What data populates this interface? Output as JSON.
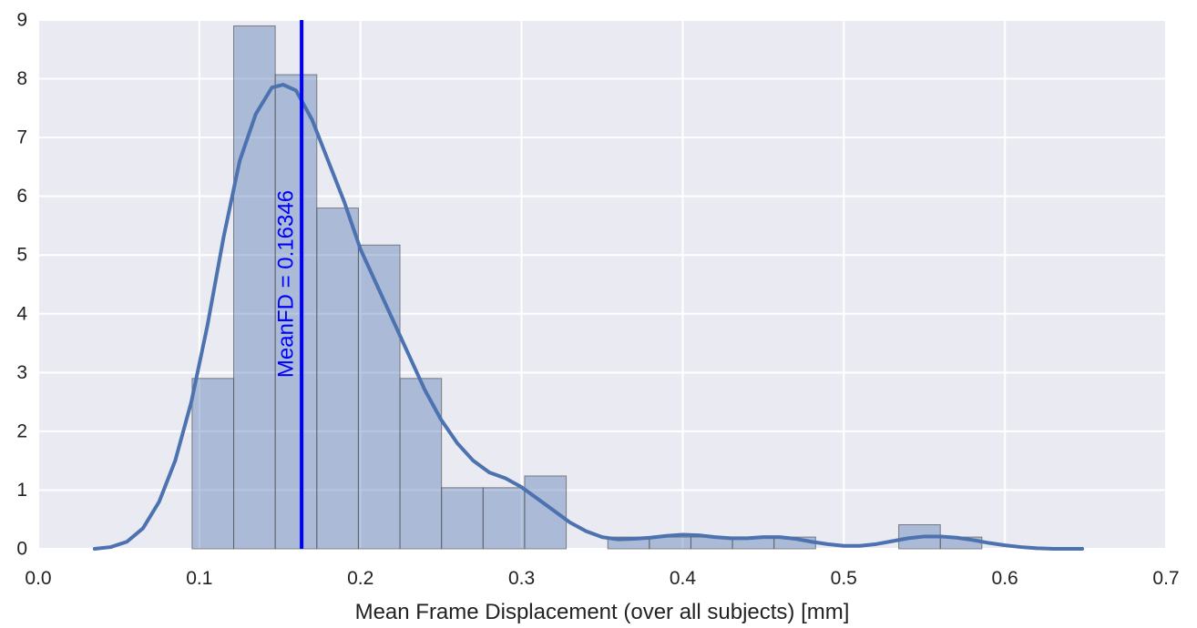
{
  "chart_data": {
    "type": "bar",
    "xlabel": "Mean Frame Displacement (over all subjects) [mm]",
    "ylabel": "",
    "xlim": [
      0.0,
      0.7
    ],
    "ylim": [
      0,
      9
    ],
    "xticks": [
      "0.0",
      "0.1",
      "0.2",
      "0.3",
      "0.4",
      "0.5",
      "0.6",
      "0.7"
    ],
    "yticks": [
      "0",
      "1",
      "2",
      "3",
      "4",
      "5",
      "6",
      "7",
      "8",
      "9"
    ],
    "grid": true,
    "colors": {
      "background": "#eaeaf2",
      "grid": "#ffffff",
      "bar_fill": "#4c72b0",
      "bar_edge": "#555555",
      "kde": "#4c72b0",
      "mean_line": "#0000ff"
    },
    "bins": [
      {
        "x0": 0.0955,
        "x1": 0.1213,
        "value": 2.9
      },
      {
        "x0": 0.1213,
        "x1": 0.1471,
        "value": 8.9
      },
      {
        "x0": 0.1471,
        "x1": 0.1729,
        "value": 8.07
      },
      {
        "x0": 0.1729,
        "x1": 0.1987,
        "value": 5.8
      },
      {
        "x0": 0.1987,
        "x1": 0.2245,
        "value": 5.17
      },
      {
        "x0": 0.2245,
        "x1": 0.2503,
        "value": 2.9
      },
      {
        "x0": 0.2503,
        "x1": 0.2761,
        "value": 1.04
      },
      {
        "x0": 0.2761,
        "x1": 0.3019,
        "value": 1.04
      },
      {
        "x0": 0.3019,
        "x1": 0.3277,
        "value": 1.24
      },
      {
        "x0": 0.3277,
        "x1": 0.3535,
        "value": 0
      },
      {
        "x0": 0.3535,
        "x1": 0.3793,
        "value": 0.2
      },
      {
        "x0": 0.3793,
        "x1": 0.4051,
        "value": 0.2
      },
      {
        "x0": 0.4051,
        "x1": 0.4309,
        "value": 0.2
      },
      {
        "x0": 0.4309,
        "x1": 0.4567,
        "value": 0.2
      },
      {
        "x0": 0.4567,
        "x1": 0.4825,
        "value": 0.2
      },
      {
        "x0": 0.4825,
        "x1": 0.5083,
        "value": 0
      },
      {
        "x0": 0.5083,
        "x1": 0.5341,
        "value": 0
      },
      {
        "x0": 0.5341,
        "x1": 0.5599,
        "value": 0.41
      },
      {
        "x0": 0.5599,
        "x1": 0.5857,
        "value": 0.2
      }
    ],
    "kde": {
      "x": [
        0.035,
        0.045,
        0.055,
        0.065,
        0.075,
        0.085,
        0.095,
        0.105,
        0.115,
        0.125,
        0.135,
        0.145,
        0.152,
        0.16,
        0.17,
        0.18,
        0.19,
        0.2,
        0.21,
        0.22,
        0.23,
        0.24,
        0.25,
        0.26,
        0.27,
        0.28,
        0.29,
        0.3,
        0.31,
        0.32,
        0.33,
        0.34,
        0.35,
        0.36,
        0.37,
        0.38,
        0.39,
        0.4,
        0.41,
        0.42,
        0.43,
        0.44,
        0.45,
        0.46,
        0.47,
        0.48,
        0.49,
        0.5,
        0.51,
        0.52,
        0.53,
        0.54,
        0.55,
        0.56,
        0.57,
        0.58,
        0.59,
        0.6,
        0.61,
        0.62,
        0.63,
        0.648
      ],
      "y": [
        0.0,
        0.03,
        0.12,
        0.35,
        0.8,
        1.5,
        2.5,
        3.8,
        5.3,
        6.6,
        7.4,
        7.85,
        7.9,
        7.8,
        7.3,
        6.6,
        5.9,
        5.1,
        4.5,
        3.9,
        3.3,
        2.7,
        2.2,
        1.8,
        1.5,
        1.3,
        1.2,
        1.05,
        0.85,
        0.65,
        0.45,
        0.3,
        0.2,
        0.16,
        0.17,
        0.19,
        0.22,
        0.24,
        0.23,
        0.2,
        0.18,
        0.18,
        0.2,
        0.2,
        0.17,
        0.12,
        0.08,
        0.05,
        0.05,
        0.08,
        0.13,
        0.18,
        0.21,
        0.21,
        0.19,
        0.15,
        0.1,
        0.06,
        0.03,
        0.01,
        0.0,
        0.0
      ]
    },
    "mean_line": {
      "x": 0.16346,
      "label": "MeanFD = 0.16346"
    }
  }
}
